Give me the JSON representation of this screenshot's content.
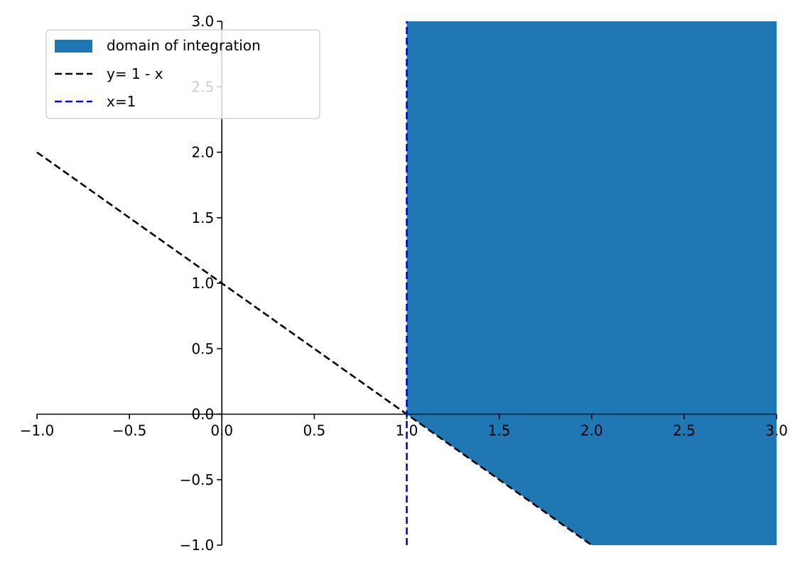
{
  "chart_data": {
    "type": "area",
    "title": "",
    "xlabel": "",
    "ylabel": "",
    "xlim": [
      -1.0,
      3.0
    ],
    "ylim": [
      -1.0,
      3.0
    ],
    "grid": false,
    "spines": "centered-at-origin",
    "x_ticks": [
      -1.0,
      -0.5,
      0.0,
      0.5,
      1.0,
      1.5,
      2.0,
      2.5,
      3.0
    ],
    "x_tick_labels": [
      "−1.0",
      "−0.5",
      "0.0",
      "0.5",
      "1.0",
      "1.5",
      "2.0",
      "2.5",
      "3.0"
    ],
    "y_ticks": [
      -1.0,
      -0.5,
      0.0,
      0.5,
      1.0,
      1.5,
      2.0,
      2.5,
      3.0
    ],
    "y_tick_labels": [
      "−1.0",
      "−0.5",
      "0.0",
      "0.5",
      "1.0",
      "1.5",
      "2.0",
      "2.5",
      "3.0"
    ],
    "legend_placement": "upper-left",
    "series": [
      {
        "name": "domain of integration",
        "kind": "filled-region",
        "color": "#1f77b4",
        "description_points": [
          [
            1.0,
            0.0
          ],
          [
            2.0,
            -1.0
          ],
          [
            3.0,
            -1.0
          ],
          [
            3.0,
            3.0
          ],
          [
            1.0,
            3.0
          ]
        ]
      },
      {
        "name": "y= 1 - x",
        "kind": "line",
        "style": "dashed",
        "color": "#000000",
        "x": [
          -1.0,
          2.0
        ],
        "y": [
          2.0,
          -1.0
        ]
      },
      {
        "name": "x=1",
        "kind": "vline",
        "style": "dashed",
        "color": "#0000ff",
        "x": [
          1.0,
          1.0
        ],
        "y": [
          -1.0,
          3.0
        ]
      }
    ]
  }
}
